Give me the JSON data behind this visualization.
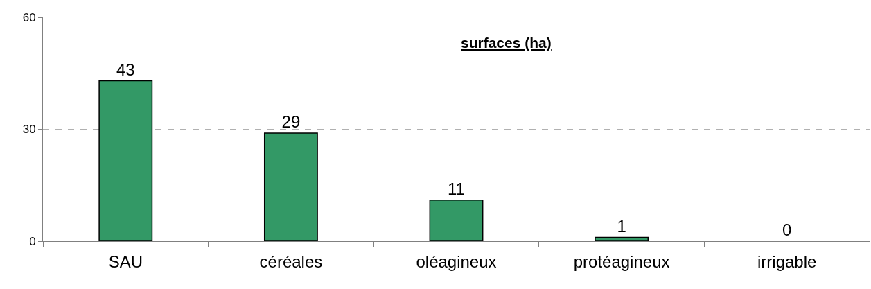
{
  "chart_data": {
    "type": "bar",
    "title": "surfaces (ha)",
    "categories": [
      "SAU",
      "céréales",
      "oléagineux",
      "protéagineux",
      "irrigable"
    ],
    "values": [
      43,
      29,
      11,
      1,
      0
    ],
    "color": "#339966",
    "ylim": [
      0,
      60
    ],
    "yticks": [
      0,
      30,
      60
    ],
    "grid": "y",
    "data_labels": true
  }
}
